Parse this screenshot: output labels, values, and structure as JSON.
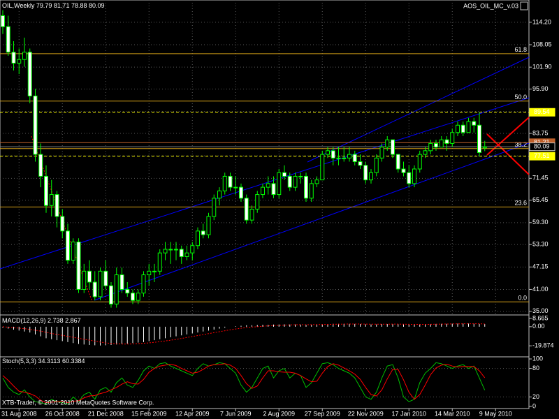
{
  "footer": "XTB-Trader, © 2001-2010 MetaQuotes Software Corp.",
  "chart_data": [
    {
      "type": "candlestick",
      "title": "OIL,Weekly",
      "indicator": "AOS_OIL_MC_v.03",
      "open": [
        116,
        113,
        106,
        103,
        104,
        106,
        94,
        78,
        72,
        64,
        67,
        61,
        57,
        49,
        54,
        41,
        46,
        43,
        39,
        46,
        42,
        37,
        45,
        41,
        40,
        38,
        40,
        45,
        46,
        46,
        51,
        52,
        52,
        52,
        50,
        51,
        53,
        57,
        56,
        61,
        66,
        68,
        72,
        69,
        69,
        66,
        60,
        63,
        67,
        69,
        70,
        67,
        73,
        72,
        69,
        72,
        72,
        66,
        70,
        71,
        78,
        79,
        77,
        77,
        77,
        78,
        76,
        75,
        71,
        73,
        77,
        80,
        82,
        78,
        74,
        73,
        70,
        74,
        78,
        79,
        81,
        80,
        82,
        81,
        84,
        86,
        84,
        87,
        86,
        79.79
      ],
      "high": [
        117.5,
        116,
        109,
        107,
        110,
        107,
        96,
        81,
        75,
        71,
        68,
        63,
        59,
        55,
        55,
        48,
        49,
        46,
        47,
        49,
        43,
        47,
        47,
        43,
        41,
        41,
        46,
        48,
        48,
        52,
        54,
        54,
        54,
        53,
        53,
        54,
        58,
        59,
        62,
        67,
        69,
        73,
        73,
        72,
        70,
        67,
        64,
        68,
        70,
        72,
        72,
        74,
        75,
        73,
        73,
        73,
        73,
        71,
        72,
        79,
        80,
        80,
        80,
        80,
        80,
        79,
        78,
        76,
        74,
        78,
        81,
        83,
        82,
        78,
        76,
        75,
        75,
        79,
        80,
        82,
        82,
        83,
        83,
        85,
        87,
        87,
        88,
        88,
        89.5,
        81.71
      ],
      "low": [
        111,
        105,
        101,
        100,
        102,
        92,
        76,
        69,
        62,
        61,
        58,
        55,
        48,
        48,
        40,
        40,
        41,
        38,
        38,
        41,
        36,
        36,
        40,
        39,
        37,
        37,
        39,
        42,
        43,
        45,
        49,
        48,
        49,
        48,
        49,
        49,
        52,
        55,
        55,
        60,
        64,
        67,
        68,
        67,
        65,
        59,
        59,
        62,
        66,
        67,
        66,
        66,
        71,
        68,
        68,
        70,
        65,
        65,
        69,
        71,
        77,
        75,
        75,
        76,
        76,
        75,
        74,
        70,
        70,
        72,
        76,
        79,
        77,
        73,
        72,
        69,
        69,
        73,
        77,
        78,
        79,
        80,
        79,
        80,
        83,
        83,
        84,
        84,
        77.5,
        78.88
      ],
      "close": [
        113,
        106,
        103,
        104,
        106,
        94,
        78,
        72,
        64,
        67,
        61,
        57,
        49,
        54,
        41,
        46,
        43,
        39,
        46,
        42,
        37,
        45,
        41,
        40,
        38,
        40,
        45,
        46,
        46,
        51,
        52,
        52,
        52,
        50,
        51,
        53,
        57,
        56,
        61,
        66,
        68,
        72,
        69,
        69,
        66,
        60,
        63,
        67,
        69,
        70,
        67,
        73,
        72,
        69,
        72,
        72,
        66,
        70,
        71,
        78,
        79,
        77,
        77,
        77,
        78,
        76,
        75,
        71,
        73,
        77,
        80,
        82,
        78,
        74,
        73,
        70,
        74,
        78,
        79,
        81,
        80,
        82,
        81,
        84,
        86,
        84,
        87,
        86,
        78.5,
        80.09
      ],
      "color_up": "#00ff00",
      "color_down": "#ffffff",
      "fill_up": "#000000",
      "ylim": [
        34.2,
        120.3
      ],
      "yticks": [
        {
          "value": 114.2,
          "label": "114.20"
        },
        108.05,
        {
          "value": 101.9,
          "label": "101.90"
        },
        {
          "value": 95.9,
          "label": "95.90"
        },
        89.75,
        83.75,
        {
          "value": 77.6,
          "label": "77.60"
        },
        71.45,
        65.45,
        {
          "value": 59.3,
          "label": "59.30"
        },
        {
          "value": 53.3,
          "label": "53.30"
        },
        47.15,
        {
          "value": 41,
          "label": "41.00"
        },
        {
          "value": 35,
          "label": "35.00"
        }
      ],
      "xticks": [
        "31 Aug 2008",
        "26 Oct 2008",
        "21 Dec 2008",
        "15 Feb 2009",
        "12 Apr 2009",
        "7 Jun 2009",
        "2 Aug 2009",
        "27 Sep 2009",
        "22 Nov 2009",
        "17 Jan 2010",
        "14 Mar 2010",
        "9 May 2010"
      ],
      "grid": true,
      "level_color": "#d4a017",
      "levels": [
        {
          "label": "61.8",
          "price": 105.6
        },
        {
          "label": "50.0",
          "price": 92.6
        },
        {
          "label": "38.2",
          "price": 79.6
        },
        {
          "label": "23.6",
          "price": 63.6
        },
        {
          "label": "0.0",
          "price": 37.6
        }
      ],
      "price_labels": [
        {
          "value": 89.54,
          "bg": "#ffff00",
          "line": "#ffff00",
          "dash": true
        },
        {
          "value": 81.21,
          "bg": "#c0602a",
          "line": "#c0602a",
          "dash": false
        },
        {
          "value": 80.09,
          "bg": "#000000",
          "line": "#808080",
          "dash": false
        },
        {
          "value": 77.51,
          "bg": "#ffff00",
          "line": "#ffff00",
          "dash": true
        }
      ]
    },
    {
      "type": "macd",
      "title": "MACD(12,26,9)",
      "values": [
        -1,
        -2,
        -3,
        -4,
        -5,
        -6,
        -8,
        -10,
        -12,
        -13,
        -14,
        -15,
        -16,
        -17,
        -18,
        -18.5,
        -19,
        -19.3,
        -19.5,
        -19.3,
        -19,
        -18.5,
        -18,
        -17.5,
        -17,
        -16.5,
        -16,
        -15,
        -14,
        -13,
        -12,
        -11,
        -10,
        -9,
        -8,
        -7,
        -6,
        -5,
        -4,
        -3,
        -2,
        -1,
        0,
        0.5,
        1,
        1.5,
        1.5,
        1.8,
        2,
        2,
        2.2,
        2.3,
        2.4,
        2.3,
        2.3,
        2.2,
        2,
        2.2,
        2.4,
        2.6,
        2.8,
        3,
        3,
        3,
        3,
        2.9,
        2.7,
        2.5,
        2.3,
        2.4,
        2.6,
        2.8,
        2.8,
        2.6,
        2.4,
        2.2,
        2.2,
        2.4,
        2.6,
        2.8,
        2.9,
        3,
        3,
        3.1,
        3.2,
        3.2,
        3.2,
        3.1,
        2.9,
        2.738
      ],
      "signal": [
        0,
        -0.5,
        -1,
        -1.5,
        -2,
        -2.8,
        -3.6,
        -4.6,
        -5.8,
        -7,
        -8,
        -9,
        -10,
        -11,
        -12,
        -13,
        -14,
        -15,
        -16,
        -16.8,
        -17.4,
        -17.8,
        -18,
        -18,
        -17.9,
        -17.6,
        -17.2,
        -16.8,
        -16.2,
        -15.6,
        -14.8,
        -14,
        -13.2,
        -12.2,
        -11.2,
        -10.2,
        -9.2,
        -8.2,
        -7.2,
        -6.2,
        -5.2,
        -4.2,
        -3.2,
        -2.4,
        -1.6,
        -0.9,
        -0.4,
        0,
        0.5,
        0.9,
        1.2,
        1.5,
        1.7,
        1.9,
        2,
        2.1,
        2.1,
        2.1,
        2.2,
        2.3,
        2.4,
        2.5,
        2.6,
        2.7,
        2.8,
        2.8,
        2.8,
        2.7,
        2.6,
        2.6,
        2.6,
        2.6,
        2.7,
        2.7,
        2.6,
        2.5,
        2.4,
        2.4,
        2.4,
        2.5,
        2.6,
        2.7,
        2.8,
        2.9,
        3,
        3,
        3.1,
        3.1,
        3,
        2.867
      ],
      "color": "#ffffff",
      "signal_color": "#ff0000",
      "ylim": [
        -30.6,
        11.5
      ],
      "yticks": [
        8.665,
        {
          "value": 0,
          "label": "0.00"
        },
        -19.874
      ]
    },
    {
      "type": "stochastic",
      "title": "Stoch(5,3,3)",
      "main": [
        60,
        40,
        30,
        25,
        35,
        20,
        10,
        8,
        5,
        15,
        10,
        8,
        5,
        20,
        10,
        25,
        30,
        15,
        35,
        40,
        30,
        50,
        60,
        45,
        40,
        55,
        75,
        85,
        80,
        90,
        92,
        85,
        80,
        75,
        70,
        65,
        80,
        90,
        85,
        88,
        92,
        90,
        80,
        70,
        45,
        30,
        40,
        60,
        80,
        85,
        60,
        75,
        80,
        60,
        70,
        65,
        40,
        50,
        70,
        90,
        92,
        88,
        80,
        75,
        70,
        60,
        40,
        20,
        15,
        30,
        60,
        85,
        88,
        60,
        20,
        10,
        15,
        50,
        70,
        80,
        92,
        90,
        85,
        80,
        85,
        88,
        80,
        85,
        60,
        34.3113
      ],
      "signal": [
        65,
        55,
        43,
        32,
        30,
        27,
        22,
        13,
        8,
        9,
        10,
        11,
        8,
        11,
        12,
        18,
        22,
        23,
        27,
        30,
        35,
        40,
        47,
        52,
        48,
        47,
        57,
        72,
        80,
        85,
        87,
        89,
        86,
        80,
        75,
        70,
        72,
        78,
        85,
        88,
        88,
        90,
        87,
        80,
        65,
        48,
        38,
        43,
        60,
        75,
        75,
        73,
        72,
        72,
        70,
        65,
        58,
        52,
        53,
        70,
        84,
        90,
        87,
        81,
        75,
        68,
        57,
        40,
        25,
        22,
        35,
        58,
        78,
        78,
        56,
        30,
        15,
        25,
        45,
        67,
        81,
        87,
        89,
        85,
        83,
        84,
        84,
        84,
        75,
        60.3384
      ],
      "color": "#00c000",
      "signal_color": "#ff0000",
      "ylim": [
        0,
        100
      ],
      "yticks": [
        100,
        80,
        20,
        0
      ],
      "levels": [
        80,
        20
      ]
    }
  ]
}
